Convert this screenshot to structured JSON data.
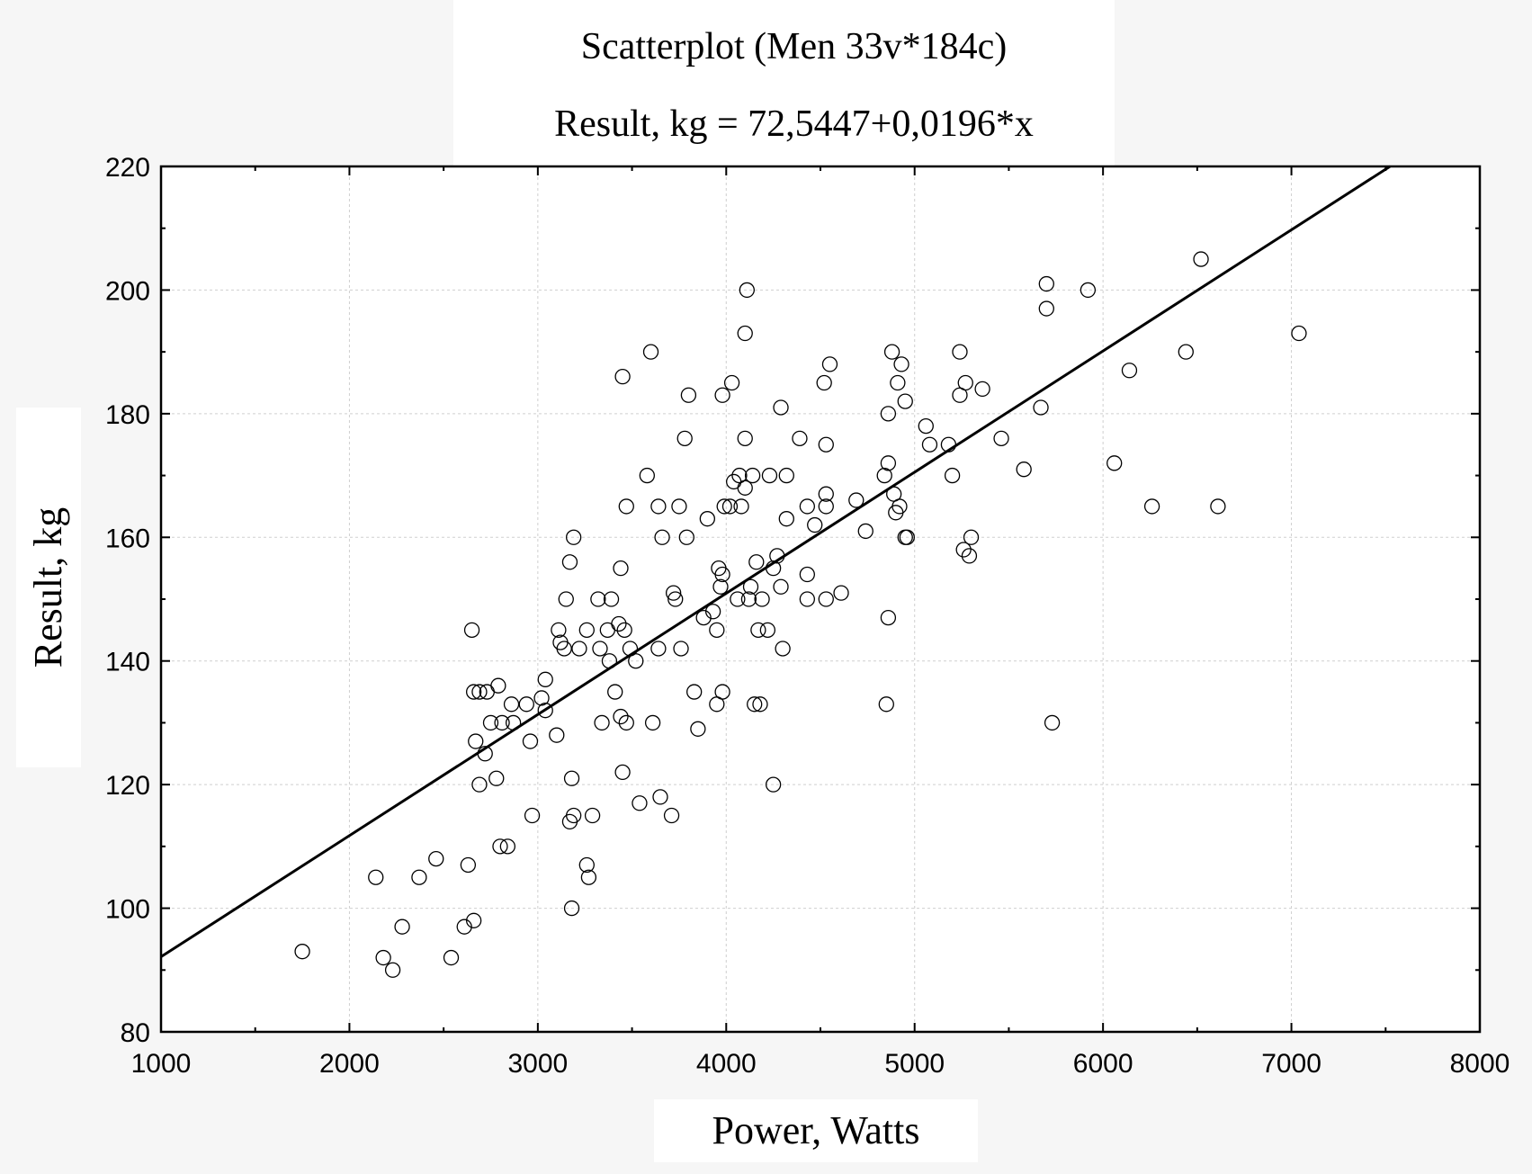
{
  "chart_data": {
    "type": "scatter",
    "title": "Scatterplot (Men 33v*184c)",
    "subtitle": "Result, kg = 72,5447+0,0196*x",
    "xlabel": "Power, Watts",
    "ylabel": "Result, kg",
    "xlim": [
      1000,
      8000
    ],
    "ylim": [
      80,
      220
    ],
    "xticks": [
      "1000",
      "2000",
      "3000",
      "4000",
      "5000",
      "6000",
      "7000",
      "8000"
    ],
    "yticks": [
      "80",
      "100",
      "120",
      "140",
      "160",
      "180",
      "200",
      "220"
    ],
    "grid": true,
    "regression": {
      "intercept": 72.5447,
      "slope": 0.0196
    },
    "points": [
      [
        1750,
        93
      ],
      [
        2140,
        105
      ],
      [
        2180,
        92
      ],
      [
        2230,
        90
      ],
      [
        2280,
        97
      ],
      [
        2370,
        105
      ],
      [
        2460,
        108
      ],
      [
        2540,
        92
      ],
      [
        2610,
        97
      ],
      [
        2630,
        107
      ],
      [
        2660,
        98
      ],
      [
        2650,
        145
      ],
      [
        2660,
        135
      ],
      [
        2690,
        135
      ],
      [
        2670,
        127
      ],
      [
        2690,
        120
      ],
      [
        2720,
        125
      ],
      [
        2730,
        135
      ],
      [
        2750,
        130
      ],
      [
        2780,
        121
      ],
      [
        2790,
        136
      ],
      [
        2800,
        110
      ],
      [
        2810,
        130
      ],
      [
        2840,
        110
      ],
      [
        2860,
        133
      ],
      [
        2870,
        130
      ],
      [
        2940,
        133
      ],
      [
        2960,
        127
      ],
      [
        2970,
        115
      ],
      [
        3020,
        134
      ],
      [
        3040,
        137
      ],
      [
        3040,
        132
      ],
      [
        3100,
        128
      ],
      [
        3110,
        145
      ],
      [
        3120,
        143
      ],
      [
        3140,
        142
      ],
      [
        3150,
        150
      ],
      [
        3170,
        156
      ],
      [
        3180,
        121
      ],
      [
        3170,
        114
      ],
      [
        3180,
        100
      ],
      [
        3190,
        115
      ],
      [
        3190,
        160
      ],
      [
        3220,
        142
      ],
      [
        3260,
        145
      ],
      [
        3260,
        107
      ],
      [
        3270,
        105
      ],
      [
        3290,
        115
      ],
      [
        3320,
        150
      ],
      [
        3330,
        142
      ],
      [
        3340,
        130
      ],
      [
        3370,
        145
      ],
      [
        3380,
        140
      ],
      [
        3390,
        150
      ],
      [
        3410,
        135
      ],
      [
        3430,
        146
      ],
      [
        3440,
        155
      ],
      [
        3440,
        131
      ],
      [
        3450,
        186
      ],
      [
        3450,
        122
      ],
      [
        3460,
        145
      ],
      [
        3470,
        165
      ],
      [
        3470,
        130
      ],
      [
        3490,
        142
      ],
      [
        3520,
        140
      ],
      [
        3540,
        117
      ],
      [
        3580,
        170
      ],
      [
        3600,
        190
      ],
      [
        3610,
        130
      ],
      [
        3640,
        165
      ],
      [
        3640,
        142
      ],
      [
        3650,
        118
      ],
      [
        3660,
        160
      ],
      [
        3710,
        115
      ],
      [
        3720,
        151
      ],
      [
        3730,
        150
      ],
      [
        3750,
        165
      ],
      [
        3760,
        142
      ],
      [
        3780,
        176
      ],
      [
        3790,
        160
      ],
      [
        3800,
        183
      ],
      [
        3830,
        135
      ],
      [
        3850,
        129
      ],
      [
        3880,
        147
      ],
      [
        3900,
        163
      ],
      [
        3930,
        148
      ],
      [
        3950,
        145
      ],
      [
        3950,
        133
      ],
      [
        3960,
        155
      ],
      [
        3970,
        152
      ],
      [
        3980,
        183
      ],
      [
        3980,
        154
      ],
      [
        3980,
        135
      ],
      [
        3990,
        165
      ],
      [
        4020,
        165
      ],
      [
        4030,
        185
      ],
      [
        4040,
        169
      ],
      [
        4060,
        150
      ],
      [
        4070,
        170
      ],
      [
        4080,
        165
      ],
      [
        4100,
        193
      ],
      [
        4100,
        176
      ],
      [
        4100,
        168
      ],
      [
        4110,
        200
      ],
      [
        4120,
        150
      ],
      [
        4130,
        152
      ],
      [
        4140,
        170
      ],
      [
        4150,
        133
      ],
      [
        4160,
        156
      ],
      [
        4170,
        145
      ],
      [
        4180,
        133
      ],
      [
        4190,
        150
      ],
      [
        4220,
        145
      ],
      [
        4230,
        170
      ],
      [
        4250,
        120
      ],
      [
        4250,
        155
      ],
      [
        4270,
        157
      ],
      [
        4290,
        181
      ],
      [
        4290,
        152
      ],
      [
        4300,
        142
      ],
      [
        4320,
        170
      ],
      [
        4320,
        163
      ],
      [
        4390,
        176
      ],
      [
        4430,
        165
      ],
      [
        4430,
        154
      ],
      [
        4430,
        150
      ],
      [
        4470,
        162
      ],
      [
        4520,
        185
      ],
      [
        4530,
        175
      ],
      [
        4530,
        167
      ],
      [
        4530,
        165
      ],
      [
        4530,
        150
      ],
      [
        4550,
        188
      ],
      [
        4610,
        151
      ],
      [
        4690,
        166
      ],
      [
        4740,
        161
      ],
      [
        4840,
        170
      ],
      [
        4850,
        133
      ],
      [
        4860,
        180
      ],
      [
        4860,
        172
      ],
      [
        4860,
        147
      ],
      [
        4880,
        190
      ],
      [
        4890,
        167
      ],
      [
        4900,
        164
      ],
      [
        4910,
        185
      ],
      [
        4920,
        165
      ],
      [
        4930,
        188
      ],
      [
        4950,
        182
      ],
      [
        4950,
        160
      ],
      [
        4960,
        160
      ],
      [
        5060,
        178
      ],
      [
        5080,
        175
      ],
      [
        5180,
        175
      ],
      [
        5200,
        170
      ],
      [
        5240,
        190
      ],
      [
        5240,
        183
      ],
      [
        5260,
        158
      ],
      [
        5270,
        185
      ],
      [
        5290,
        157
      ],
      [
        5300,
        160
      ],
      [
        5360,
        184
      ],
      [
        5460,
        176
      ],
      [
        5580,
        171
      ],
      [
        5670,
        181
      ],
      [
        5700,
        201
      ],
      [
        5700,
        197
      ],
      [
        5730,
        130
      ],
      [
        5920,
        200
      ],
      [
        6060,
        172
      ],
      [
        6140,
        187
      ],
      [
        6260,
        165
      ],
      [
        6440,
        190
      ],
      [
        6520,
        205
      ],
      [
        6610,
        165
      ],
      [
        7040,
        193
      ]
    ]
  }
}
